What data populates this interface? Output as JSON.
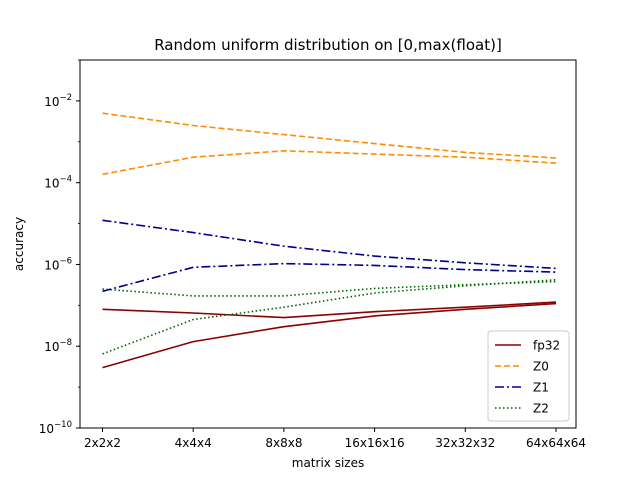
{
  "chart_data": {
    "type": "line",
    "title": "Random uniform distribution on [0,max(float)]",
    "xlabel": "matrix sizes",
    "ylabel": "accuracy",
    "yscale": "log",
    "ylim": [
      1e-10,
      0.1
    ],
    "y_tick_labels": [
      {
        "value": 1e-10,
        "base": "10",
        "exp": "−10"
      },
      {
        "value": 1e-08,
        "base": "10",
        "exp": "−8"
      },
      {
        "value": 1e-06,
        "base": "10",
        "exp": "−6"
      },
      {
        "value": 0.0001,
        "base": "10",
        "exp": "−4"
      },
      {
        "value": 0.01,
        "base": "10",
        "exp": "−2"
      }
    ],
    "categories": [
      "2x2x2",
      "4x4x4",
      "8x8x8",
      "16x16x16",
      "32x32x32",
      "64x64x64"
    ],
    "legend_position": "lower-right",
    "series": [
      {
        "name": "fp32",
        "color": "#8b0000",
        "dash": "solid",
        "legend": true,
        "values": [
          3e-09,
          1.3e-08,
          3e-08,
          5.5e-08,
          8e-08,
          1.1e-07
        ]
      },
      {
        "name": "fp32",
        "color": "#8b0000",
        "dash": "solid",
        "legend": false,
        "values": [
          8e-08,
          6.5e-08,
          5e-08,
          7e-08,
          9e-08,
          1.2e-07
        ]
      },
      {
        "name": "Z0",
        "color": "#ff8c00",
        "dash": "dashed",
        "legend": true,
        "values": [
          0.005,
          0.0025,
          0.0015,
          0.0009,
          0.00055,
          0.0004
        ]
      },
      {
        "name": "Z0",
        "color": "#ff8c00",
        "dash": "dashed",
        "legend": false,
        "values": [
          0.00016,
          0.00042,
          0.0006,
          0.0005,
          0.00042,
          0.0003
        ]
      },
      {
        "name": "Z1",
        "color": "#00008b",
        "dash": "dashdot",
        "legend": true,
        "values": [
          1.2e-05,
          6e-06,
          2.8e-06,
          1.6e-06,
          1.1e-06,
          8e-07
        ]
      },
      {
        "name": "Z1",
        "color": "#00008b",
        "dash": "dashdot",
        "legend": false,
        "values": [
          2.2e-07,
          8.5e-07,
          1.05e-06,
          9.5e-07,
          7.5e-07,
          6.5e-07
        ]
      },
      {
        "name": "Z2",
        "color": "#006400",
        "dash": "dotted",
        "legend": true,
        "values": [
          2.5e-07,
          1.7e-07,
          1.7e-07,
          2.6e-07,
          3.2e-07,
          3.8e-07
        ]
      },
      {
        "name": "Z2",
        "color": "#006400",
        "dash": "dotted",
        "legend": false,
        "values": [
          6.5e-09,
          4.5e-08,
          9e-08,
          2e-07,
          3e-07,
          4.2e-07
        ]
      }
    ]
  }
}
